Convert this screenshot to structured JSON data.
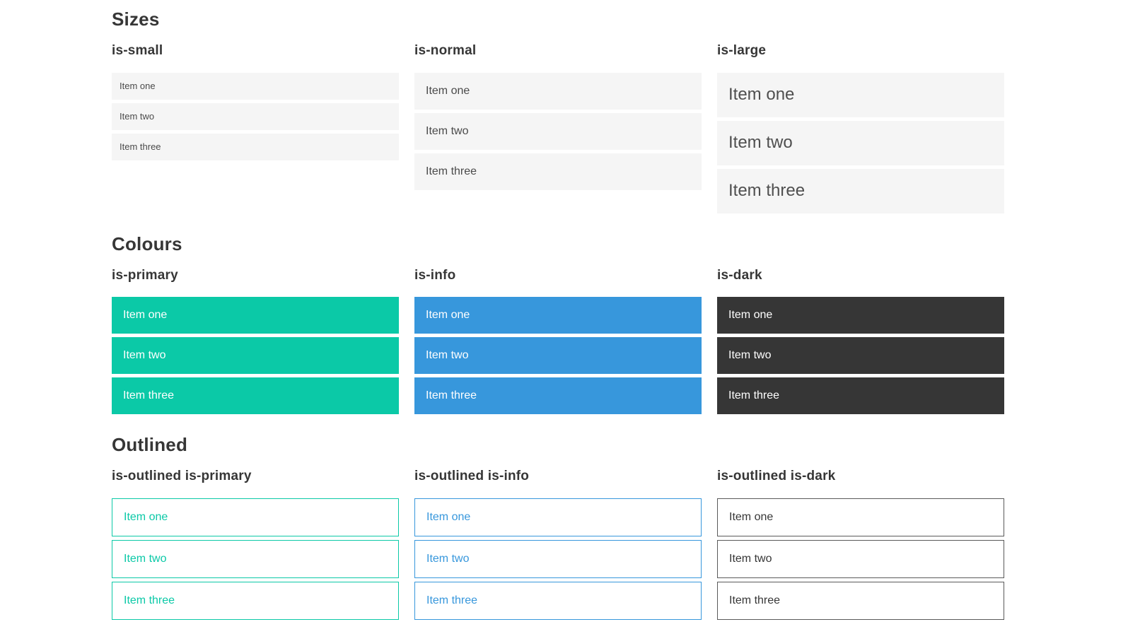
{
  "page": {
    "background": "#ffffff"
  },
  "colors": {
    "primary": "#0bc9a7",
    "info": "#3797dc",
    "dark": "#363636",
    "item_background": "#f5f5f5",
    "item_text": "#4a4a4a",
    "heading_text": "#363636",
    "white_text": "#ffffff",
    "outlined_dark_border": "#5a5a5a"
  },
  "sections": [
    {
      "title": "Sizes",
      "groups": [
        {
          "label": "is-small",
          "variant": "size-small",
          "items": [
            "Item one",
            "Item two",
            "Item three"
          ]
        },
        {
          "label": "is-normal",
          "variant": "size-normal",
          "items": [
            "Item one",
            "Item two",
            "Item three"
          ]
        },
        {
          "label": "is-large",
          "variant": "size-large",
          "items": [
            "Item one",
            "Item two",
            "Item three"
          ]
        }
      ]
    },
    {
      "title": "Colours",
      "groups": [
        {
          "label": "is-primary",
          "variant": "color-primary",
          "items": [
            "Item one",
            "Item two",
            "Item three"
          ]
        },
        {
          "label": "is-info",
          "variant": "color-info",
          "items": [
            "Item one",
            "Item two",
            "Item three"
          ]
        },
        {
          "label": "is-dark",
          "variant": "color-dark",
          "items": [
            "Item one",
            "Item two",
            "Item three"
          ]
        }
      ]
    },
    {
      "title": "Outlined",
      "groups": [
        {
          "label": "is-outlined is-primary",
          "variant": "outlined-primary",
          "items": [
            "Item one",
            "Item two",
            "Item three"
          ]
        },
        {
          "label": "is-outlined is-info",
          "variant": "outlined-info",
          "items": [
            "Item one",
            "Item two",
            "Item three"
          ]
        },
        {
          "label": "is-outlined is-dark",
          "variant": "outlined-dark",
          "items": [
            "Item one",
            "Item two",
            "Item three"
          ]
        }
      ]
    }
  ]
}
